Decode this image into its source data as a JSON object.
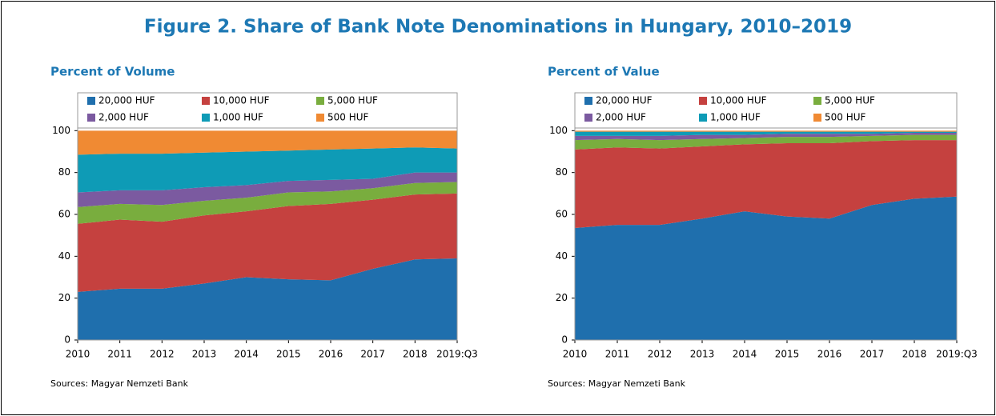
{
  "title": "Figure 2. Share of Bank Note Denominations in Hungary, 2010–2019",
  "chart_data": [
    {
      "type": "area",
      "stacked": true,
      "title": "Percent of Volume",
      "note": "Sources: Magyar Nemzeti Bank",
      "categories": [
        "2010",
        "2011",
        "2012",
        "2013",
        "2014",
        "2015",
        "2016",
        "2017",
        "2018",
        "2019:Q3"
      ],
      "ylim": [
        0,
        120
      ],
      "yticks": [
        0,
        20,
        40,
        60,
        80,
        100
      ],
      "series": [
        {
          "name": "20,000 HUF",
          "color": "#1f6fad",
          "values": [
            23,
            24.5,
            24.5,
            27,
            30,
            29,
            28.5,
            34,
            38.5,
            39
          ]
        },
        {
          "name": "10,000 HUF",
          "color": "#c5413f",
          "values": [
            32.5,
            33,
            32,
            32.5,
            31.5,
            35,
            36.5,
            33,
            31,
            31
          ]
        },
        {
          "name": "5,000 HUF",
          "color": "#79ad3e",
          "values": [
            8,
            7.5,
            8,
            7,
            6.5,
            6.5,
            6,
            5.5,
            5.5,
            5.5
          ]
        },
        {
          "name": "2,000 HUF",
          "color": "#7b5aa0",
          "values": [
            7,
            6.5,
            7,
            6.5,
            6,
            5.5,
            5.5,
            4.5,
            5,
            4.5
          ]
        },
        {
          "name": "1,000 HUF",
          "color": "#0e9bb6",
          "values": [
            18,
            17.5,
            17.5,
            16.5,
            16,
            14.5,
            14.5,
            14.5,
            12,
            11.5
          ]
        },
        {
          "name": "500 HUF",
          "color": "#f08a33",
          "values": [
            11.5,
            11,
            11,
            10.5,
            10,
            9.5,
            9,
            8.5,
            8,
            8.5
          ]
        }
      ]
    },
    {
      "type": "area",
      "stacked": true,
      "title": "Percent of Value",
      "note": "Sources: Magyar Nemzeti Bank",
      "categories": [
        "2010",
        "2011",
        "2012",
        "2013",
        "2014",
        "2015",
        "2016",
        "2017",
        "2018",
        "2019:Q3"
      ],
      "ylim": [
        0,
        120
      ],
      "yticks": [
        0,
        20,
        40,
        60,
        80,
        100
      ],
      "series": [
        {
          "name": "20,000 HUF",
          "color": "#1f6fad",
          "values": [
            53.5,
            55,
            55,
            58,
            61.5,
            59,
            58,
            64.5,
            67.5,
            68.5
          ]
        },
        {
          "name": "10,000 HUF",
          "color": "#c5413f",
          "values": [
            37.5,
            37,
            36.5,
            34.5,
            32,
            35,
            36,
            30.5,
            28,
            27
          ]
        },
        {
          "name": "5,000 HUF",
          "color": "#79ad3e",
          "values": [
            4.5,
            4,
            4,
            3.5,
            3,
            3,
            3,
            2.5,
            2.5,
            2.5
          ]
        },
        {
          "name": "2,000 HUF",
          "color": "#7b5aa0",
          "values": [
            2,
            1.5,
            2,
            2,
            1.5,
            1.5,
            1.5,
            1,
            1,
            1
          ]
        },
        {
          "name": "1,000 HUF",
          "color": "#0e9bb6",
          "values": [
            2,
            2,
            2,
            1.5,
            1.5,
            1,
            1,
            1,
            0.5,
            0.5
          ]
        },
        {
          "name": "500 HUF",
          "color": "#f08a33",
          "values": [
            0.5,
            0.5,
            0.5,
            0.5,
            0.5,
            0.5,
            0.5,
            0.5,
            0.5,
            0.5
          ]
        }
      ]
    }
  ]
}
